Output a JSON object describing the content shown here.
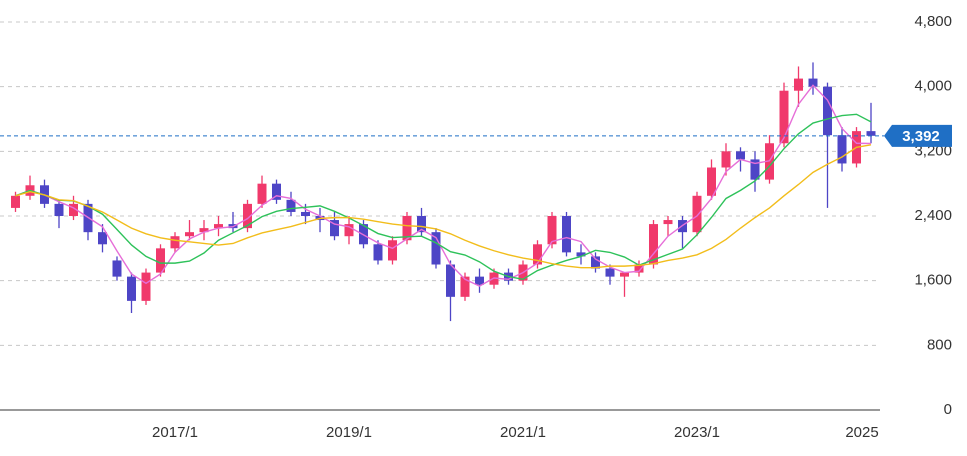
{
  "chart_data": {
    "type": "candlestick",
    "categories": [
      null,
      null,
      null,
      null,
      null,
      null,
      null,
      null,
      null,
      null,
      null,
      "2017/1",
      null,
      null,
      null,
      null,
      null,
      null,
      null,
      null,
      null,
      null,
      null,
      "2019/1",
      null,
      null,
      null,
      null,
      null,
      null,
      null,
      null,
      null,
      null,
      null,
      "2021/1",
      null,
      null,
      null,
      null,
      null,
      null,
      null,
      null,
      null,
      null,
      null,
      "2023/1",
      null,
      null,
      null,
      null,
      null,
      null,
      null,
      null,
      null,
      null,
      null,
      "2025"
    ],
    "open": [
      2500,
      2650,
      2780,
      2550,
      2400,
      2550,
      2200,
      1850,
      1650,
      1350,
      1700,
      2000,
      2150,
      2200,
      2250,
      2300,
      2250,
      2550,
      2800,
      2600,
      2450,
      2400,
      2350,
      2150,
      2300,
      2050,
      1850,
      2100,
      2400,
      2200,
      1800,
      1400,
      1650,
      1550,
      1700,
      1600,
      1800,
      2050,
      2400,
      1950,
      1900,
      1750,
      1650,
      1700,
      1800,
      2300,
      2350,
      2200,
      2650,
      3000,
      3200,
      3100,
      2850,
      3300,
      3950,
      4100,
      4000,
      3400,
      3050,
      3450
    ],
    "high": [
      2700,
      2900,
      2850,
      2600,
      2650,
      2600,
      2300,
      1900,
      1700,
      1750,
      2050,
      2200,
      2350,
      2350,
      2400,
      2450,
      2600,
      2900,
      2850,
      2700,
      2550,
      2500,
      2450,
      2400,
      2350,
      2100,
      2150,
      2450,
      2500,
      2250,
      1850,
      1700,
      1750,
      1750,
      1750,
      1850,
      2100,
      2450,
      2450,
      2050,
      1950,
      1800,
      1700,
      1850,
      2350,
      2400,
      2400,
      2700,
      3100,
      3300,
      3250,
      3200,
      3400,
      4050,
      4250,
      4300,
      4050,
      3500,
      3500,
      3800
    ],
    "low": [
      2450,
      2600,
      2500,
      2250,
      2350,
      2100,
      1950,
      1600,
      1200,
      1300,
      1650,
      1950,
      2100,
      2100,
      2150,
      2200,
      2200,
      2500,
      2550,
      2400,
      2300,
      2200,
      2100,
      2050,
      2000,
      1800,
      1800,
      2050,
      2150,
      1750,
      1100,
      1350,
      1450,
      1500,
      1550,
      1550,
      1750,
      2000,
      1900,
      1800,
      1700,
      1550,
      1400,
      1650,
      1750,
      2150,
      2000,
      2150,
      2600,
      2900,
      2950,
      2700,
      2800,
      3250,
      3750,
      3900,
      2500,
      2950,
      3000,
      3300
    ],
    "close": [
      2650,
      2780,
      2550,
      2400,
      2550,
      2200,
      2050,
      1650,
      1350,
      1700,
      2000,
      2150,
      2200,
      2250,
      2300,
      2250,
      2550,
      2800,
      2600,
      2450,
      2400,
      2350,
      2150,
      2300,
      2050,
      1850,
      2100,
      2400,
      2200,
      1800,
      1400,
      1650,
      1550,
      1700,
      1600,
      1800,
      2050,
      2400,
      1950,
      1900,
      1750,
      1650,
      1700,
      1800,
      2300,
      2350,
      2200,
      2650,
      3000,
      3200,
      3100,
      2850,
      3300,
      3950,
      4100,
      4000,
      3400,
      3050,
      3450,
      3392
    ],
    "up_color": "#f0396b",
    "down_color": "#4d45c6",
    "moving_averages": [
      {
        "color": "#e66ed8",
        "values": [
          2650,
          2715,
          2660,
          2577,
          2500,
          2383,
          2267,
          1967,
          1683,
          1567,
          1683,
          1950,
          2117,
          2200,
          2250,
          2267,
          2367,
          2533,
          2650,
          2617,
          2483,
          2400,
          2300,
          2267,
          2167,
          2067,
          2000,
          2117,
          2233,
          2133,
          1800,
          1617,
          1533,
          1633,
          1617,
          1700,
          1817,
          2083,
          2133,
          2083,
          1867,
          1767,
          1700,
          1717,
          1933,
          2150,
          2283,
          2400,
          2617,
          2950,
          3100,
          3050,
          3083,
          3367,
          3783,
          4017,
          3833,
          3483,
          3300,
          3297
        ]
      },
      {
        "color": "#2ec25a",
        "values": [
          2650,
          2715,
          2660,
          2595,
          2586,
          2522,
          2422,
          2233,
          2042,
          1900,
          1817,
          1817,
          1842,
          1942,
          2100,
          2192,
          2283,
          2392,
          2458,
          2492,
          2508,
          2525,
          2458,
          2375,
          2283,
          2183,
          2133,
          2142,
          2150,
          2067,
          1958,
          1917,
          1833,
          1717,
          1650,
          1617,
          1725,
          1792,
          1850,
          1900,
          1975,
          1950,
          1892,
          1792,
          1858,
          1925,
          1992,
          2167,
          2383,
          2617,
          2717,
          2833,
          3017,
          3233,
          3417,
          3550,
          3600,
          3642,
          3658,
          3565
        ]
      },
      {
        "color": "#f2bd1b",
        "values": [
          2650,
          2700,
          2660,
          2600,
          2590,
          2520,
          2450,
          2350,
          2250,
          2180,
          2130,
          2100,
          2080,
          2060,
          2040,
          2060,
          2130,
          2190,
          2230,
          2270,
          2320,
          2370,
          2380,
          2380,
          2360,
          2330,
          2300,
          2280,
          2270,
          2240,
          2180,
          2100,
          2030,
          1970,
          1920,
          1880,
          1850,
          1810,
          1780,
          1760,
          1760,
          1780,
          1780,
          1790,
          1810,
          1850,
          1880,
          1920,
          2000,
          2110,
          2250,
          2380,
          2500,
          2650,
          2790,
          2940,
          3040,
          3130,
          3250,
          3280
        ]
      }
    ],
    "price_line": {
      "value": 3392,
      "label": "3,392",
      "color": "#1f6fc5"
    },
    "ylim": [
      0,
      4800
    ],
    "yticks": [
      0,
      {
        "value": 800,
        "label": "800"
      },
      {
        "value": 1600,
        "label": "1,600"
      },
      {
        "value": 2400,
        "label": "2,400"
      },
      {
        "value": 3200,
        "label": "3,200"
      },
      {
        "value": 4000,
        "label": "4,000"
      },
      {
        "value": 4800,
        "label": "4,800"
      }
    ],
    "grid": true
  }
}
